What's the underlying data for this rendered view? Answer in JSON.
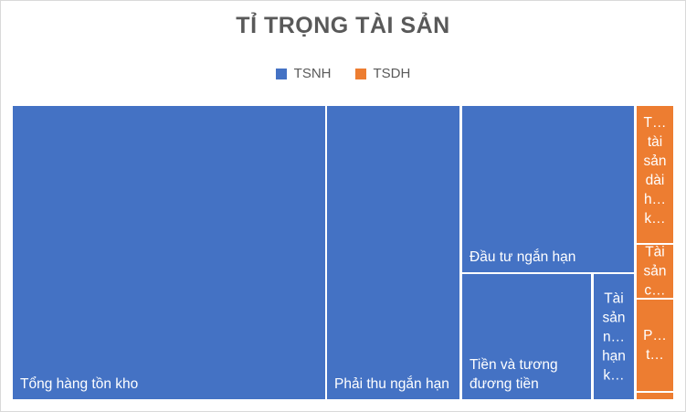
{
  "chart_data": {
    "type": "treemap",
    "title": "TỈ TRỌNG TÀI SẢN",
    "legend": {
      "position": "top",
      "entries": [
        {
          "name": "TSNH",
          "color": "#4472C4"
        },
        {
          "name": "TSDH",
          "color": "#ED7D31"
        }
      ]
    },
    "series": [
      {
        "name": "TSNH",
        "color": "#4472C4",
        "items": [
          {
            "label": "Tổng hàng tồn kho",
            "value": 47.3
          },
          {
            "label": "Phải thu ngắn hạn",
            "value": 20.1
          },
          {
            "label": "Đầu tư ngắn hạn",
            "value": 14.7
          },
          {
            "label": "Tiền và tương đương tiền",
            "value": 8.3
          },
          {
            "label": "Tài sản n… hạn k…",
            "value": 2.6
          }
        ]
      },
      {
        "name": "TSDH",
        "color": "#ED7D31",
        "items": [
          {
            "label": "T… tài sản dài h… k…",
            "value": 2.6
          },
          {
            "label": "Tài sản c…",
            "value": 1.0
          },
          {
            "label": "P… t…",
            "value": 1.7
          },
          {
            "label": "",
            "value": 0.1
          }
        ]
      }
    ]
  }
}
